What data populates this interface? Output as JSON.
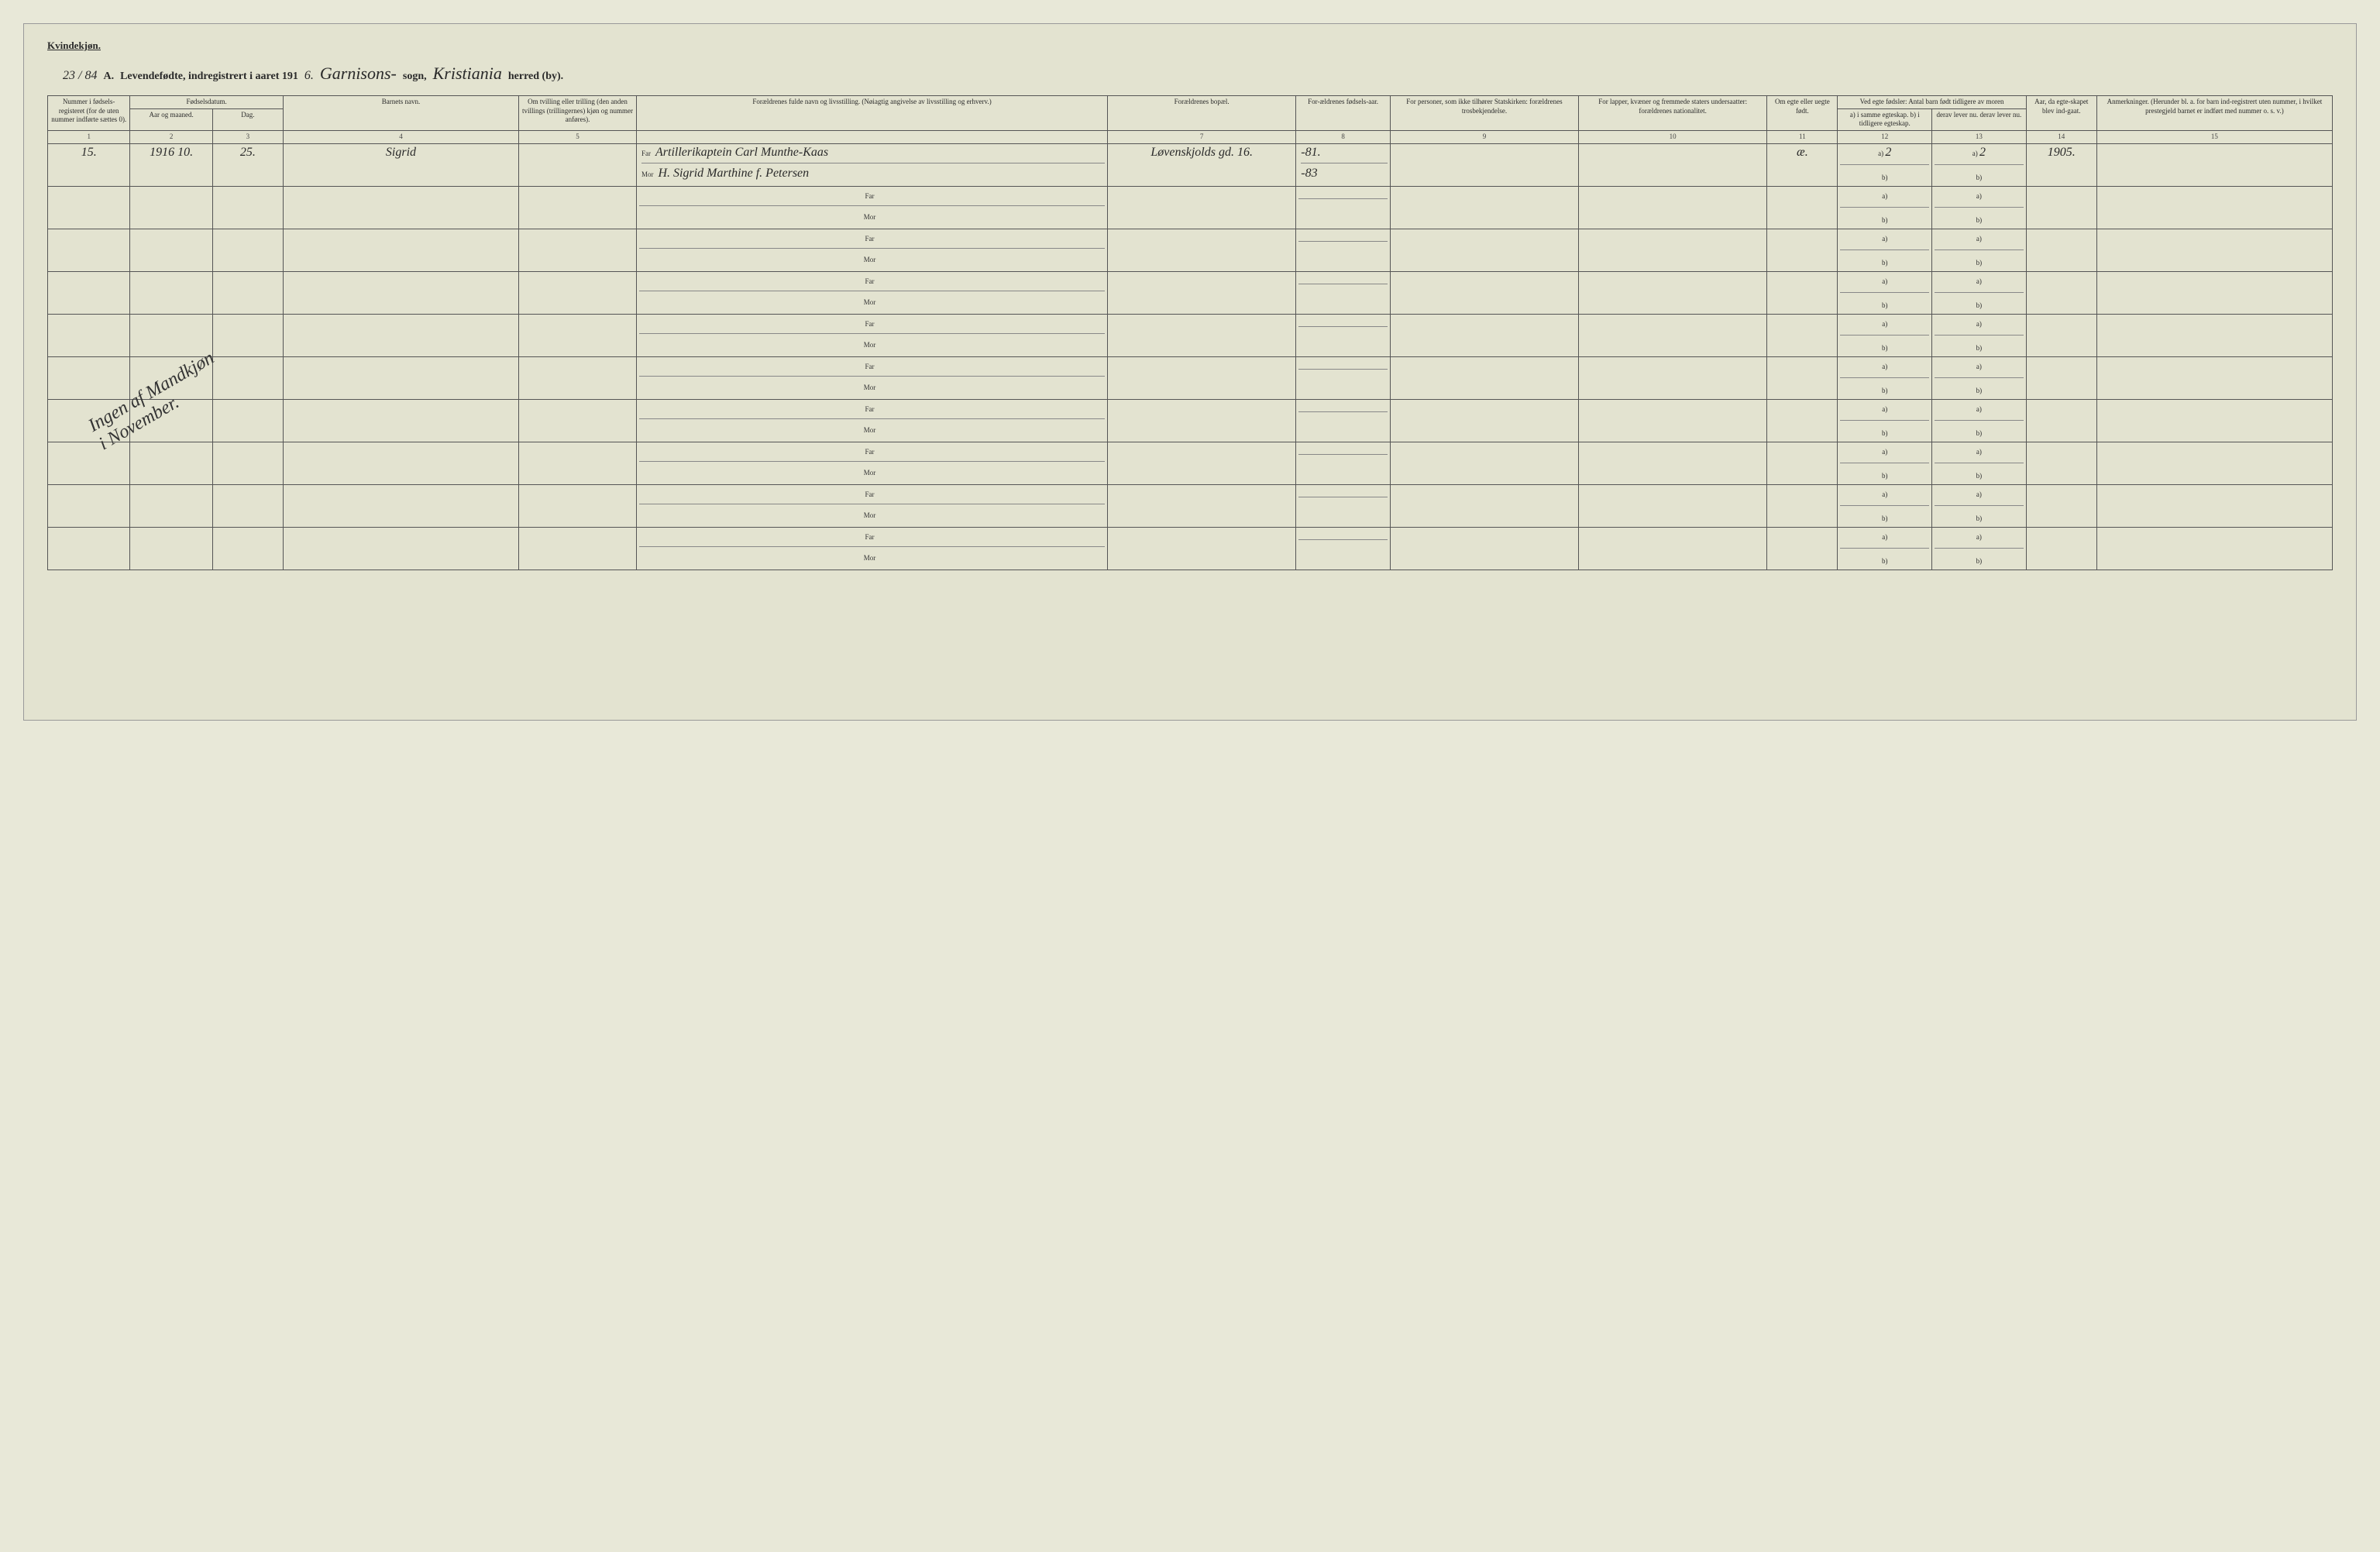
{
  "page": {
    "background_color": "#e3e3d0",
    "border_color": "#555555",
    "text_color": "#2a2a2a"
  },
  "header": {
    "kjonn_label": "Kvindekjøn.",
    "page_annotation": "23 / 84",
    "title_prefix": "A.",
    "title_text": "Levendefødte, indregistrert i aaret 191",
    "year_suffix": "6.",
    "sogn_value": "Garnisons-",
    "sogn_label": "sogn,",
    "herred_value": "Kristiania",
    "herred_label": "herred (by)."
  },
  "columns": {
    "c1": "Nummer i fødsels-registeret (for de uten nummer indførte sættes 0).",
    "c2_group": "Fødselsdatum.",
    "c2": "Aar og maaned.",
    "c3": "Dag.",
    "c4": "Barnets navn.",
    "c5": "Om tvilling eller trilling (den anden tvillings (trillingernes) kjøn og nummer anføres).",
    "c6_7_group": "Forældrenes fulde navn og livsstilling. (Nøiagtig angivelse av livsstilling og erhverv.)",
    "c7": "Forældrenes bopæl.",
    "c8": "For-ældrenes fødsels-aar.",
    "c9": "For personer, som ikke tilhører Statskirken: forældrenes trosbekjendelse.",
    "c10": "For lapper, kvæner og fremmede staters undersaatter: forældrenes nationalitet.",
    "c11": "Om egte eller uegte født.",
    "c12_13_group": "Ved egte fødsler: Antal barn født tidligere av moren",
    "c12": "a) i samme egteskap. b) i tidligere egteskap.",
    "c13": "derav lever nu. derav lever nu.",
    "c14": "Aar, da egte-skapet blev ind-gaat.",
    "c15": "Anmerkninger. (Herunder bl. a. for barn ind-registrert uten nummer, i hvilket prestegjeld barnet er indført med nummer o. s. v.)",
    "far_label": "Far",
    "mor_label": "Mor",
    "a_label": "a)",
    "b_label": "b)"
  },
  "colnums": [
    "1",
    "2",
    "3",
    "4",
    "5",
    "",
    "7",
    "8",
    "9",
    "10",
    "11",
    "12",
    "13",
    "14",
    "15"
  ],
  "rows": [
    {
      "num": "15.",
      "year_month": "1916 10.",
      "day": "25.",
      "name": "Sigrid",
      "twin": "",
      "far": "Artillerikaptein Carl Munthe-Kaas",
      "mor": "H. Sigrid Marthine f. Petersen",
      "bopael": "Løvenskjolds gd. 16.",
      "far_year": "-81.",
      "mor_year": "-83",
      "religion": "",
      "nationality": "",
      "egte": "æ.",
      "c12a": "2",
      "c12b": "",
      "c13a": "2",
      "c13b": "",
      "c14": "1905.",
      "remarks": ""
    }
  ],
  "empty_row_count": 9,
  "diagonal_note": "Ingen af Mandkjøn\ni November."
}
